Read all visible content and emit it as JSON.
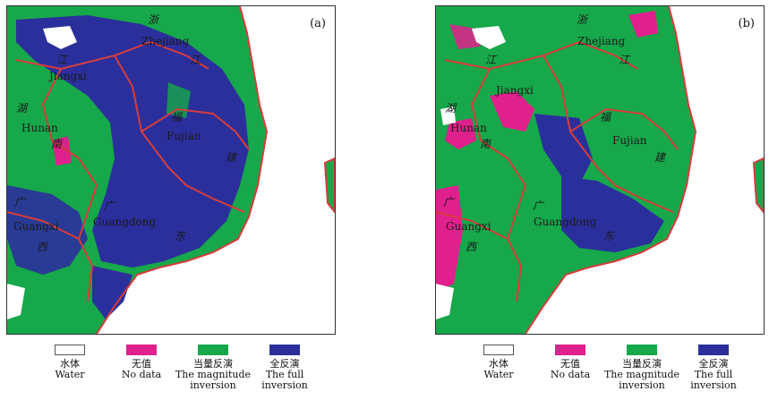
{
  "colors": {
    "water": "#ffffff",
    "nodata": "#e0208c",
    "magnitude": "#16a84a",
    "full": "#2b2f9c",
    "boundary": "#d73c3c"
  },
  "panels": [
    {
      "label": "(a)",
      "provinces": [
        "Zhejiang",
        "Jiangxi",
        "Hunan",
        "Fujian",
        "Guangxi",
        "Guangdong"
      ],
      "cjk": [
        "浙",
        "江",
        "江",
        "湖",
        "南",
        "福",
        "建",
        "广",
        "西",
        "广",
        "东"
      ]
    },
    {
      "label": "(b)",
      "provinces": [
        "Zhejiang",
        "Jiangxi",
        "Hunan",
        "Fujian",
        "Guangxi",
        "Guangdong"
      ],
      "cjk": [
        "浙",
        "江",
        "江",
        "湖",
        "南",
        "福",
        "建",
        "广",
        "西",
        "广",
        "东"
      ]
    }
  ],
  "legend": [
    {
      "cn": "水体",
      "en1": "Water",
      "en2": ""
    },
    {
      "cn": "无值",
      "en1": "No data",
      "en2": ""
    },
    {
      "cn": "当量反演",
      "en1": "The magnitude",
      "en2": "inversion"
    },
    {
      "cn": "全反演",
      "en1": "The full",
      "en2": "inversion"
    }
  ]
}
